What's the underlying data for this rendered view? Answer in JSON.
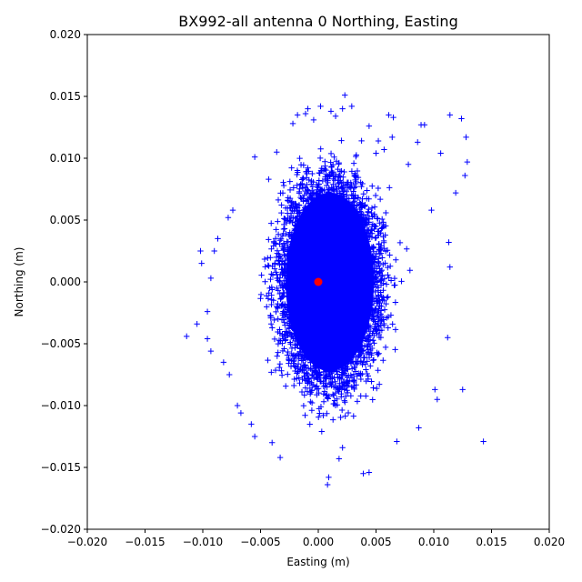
{
  "chart_data": {
    "type": "scatter",
    "title": "BX992-all antenna 0 Northing, Easting",
    "xlabel": "Easting (m)",
    "ylabel": "Northing (m)",
    "xlim": [
      -0.02,
      0.02
    ],
    "ylim": [
      -0.02,
      0.02
    ],
    "xticks": [
      -0.02,
      -0.015,
      -0.01,
      -0.005,
      0.0,
      0.005,
      0.01,
      0.015,
      0.02
    ],
    "yticks": [
      -0.02,
      -0.015,
      -0.01,
      -0.005,
      0.0,
      0.005,
      0.01,
      0.015,
      0.02
    ],
    "xtick_labels": [
      "−0.020",
      "−0.015",
      "−0.010",
      "−0.005",
      "0.000",
      "0.005",
      "0.010",
      "0.015",
      "0.020"
    ],
    "ytick_labels": [
      "−0.020",
      "−0.015",
      "−0.010",
      "−0.005",
      "0.000",
      "0.005",
      "0.010",
      "0.015",
      "0.020"
    ],
    "grid": false,
    "legend": "none",
    "series": [
      {
        "marker": "+",
        "color": "#0000ff",
        "cloud": {
          "center": [
            0.001,
            0.0
          ],
          "half_width": [
            0.0045,
            0.0085
          ],
          "core_radius_fraction": 0.85
        },
        "outliers": [
          [
            0.0143,
            -0.0129
          ],
          [
            0.0125,
            -0.0087
          ],
          [
            0.0112,
            -0.0045
          ],
          [
            0.0128,
            0.0117
          ],
          [
            0.0124,
            0.0132
          ],
          [
            0.0114,
            0.0135
          ],
          [
            0.0127,
            0.0086
          ],
          [
            0.0129,
            0.0097
          ],
          [
            0.0119,
            0.0072
          ],
          [
            0.0113,
            0.0032
          ],
          [
            0.0114,
            0.0012
          ],
          [
            0.0106,
            0.0104
          ],
          [
            0.0092,
            0.0127
          ],
          [
            0.0089,
            0.0127
          ],
          [
            0.0086,
            0.0113
          ],
          [
            0.0065,
            0.0133
          ],
          [
            0.0061,
            0.0135
          ],
          [
            0.0064,
            0.0117
          ],
          [
            0.0078,
            0.0095
          ],
          [
            0.0098,
            0.0058
          ],
          [
            0.0103,
            -0.0095
          ],
          [
            0.0101,
            -0.0087
          ],
          [
            0.0087,
            -0.0118
          ],
          [
            0.0068,
            -0.0129
          ],
          [
            0.0044,
            -0.0154
          ],
          [
            0.0039,
            -0.0155
          ],
          [
            0.0009,
            -0.0158
          ],
          [
            0.0008,
            -0.0164
          ],
          [
            0.0018,
            -0.0143
          ],
          [
            0.0021,
            -0.0134
          ],
          [
            0.0003,
            -0.0121
          ],
          [
            -0.0033,
            -0.0142
          ],
          [
            -0.004,
            -0.013
          ],
          [
            -0.0055,
            -0.0125
          ],
          [
            -0.0058,
            -0.0115
          ],
          [
            -0.0067,
            -0.0106
          ],
          [
            -0.007,
            -0.01
          ],
          [
            -0.0077,
            -0.0075
          ],
          [
            -0.0082,
            -0.0065
          ],
          [
            -0.0093,
            -0.0056
          ],
          [
            -0.0096,
            -0.0046
          ],
          [
            -0.0114,
            -0.0044
          ],
          [
            -0.0105,
            -0.0034
          ],
          [
            -0.0096,
            -0.0024
          ],
          [
            -0.0093,
            0.0003
          ],
          [
            -0.0101,
            0.0015
          ],
          [
            -0.009,
            0.0025
          ],
          [
            -0.0102,
            0.0025
          ],
          [
            -0.0087,
            0.0035
          ],
          [
            -0.0078,
            0.0052
          ],
          [
            -0.0074,
            0.0058
          ],
          [
            -0.0055,
            0.0101
          ],
          [
            -0.0043,
            0.0083
          ],
          [
            -0.0036,
            0.0105
          ],
          [
            -0.0022,
            0.0128
          ],
          [
            -0.0018,
            0.0135
          ],
          [
            -0.0011,
            0.0136
          ],
          [
            -0.0009,
            0.014
          ],
          [
            -0.0004,
            0.0131
          ],
          [
            0.0002,
            0.0142
          ],
          [
            0.0011,
            0.0138
          ],
          [
            0.0015,
            0.0134
          ],
          [
            0.0021,
            0.014
          ],
          [
            0.0023,
            0.0151
          ],
          [
            0.0029,
            0.0142
          ],
          [
            0.0044,
            0.0126
          ],
          [
            0.0052,
            0.0114
          ],
          [
            0.0057,
            0.0107
          ],
          [
            0.005,
            0.0104
          ]
        ]
      },
      {
        "marker": "o",
        "color": "#ff0000",
        "x": [
          0.0
        ],
        "y": [
          0.0
        ]
      }
    ]
  }
}
